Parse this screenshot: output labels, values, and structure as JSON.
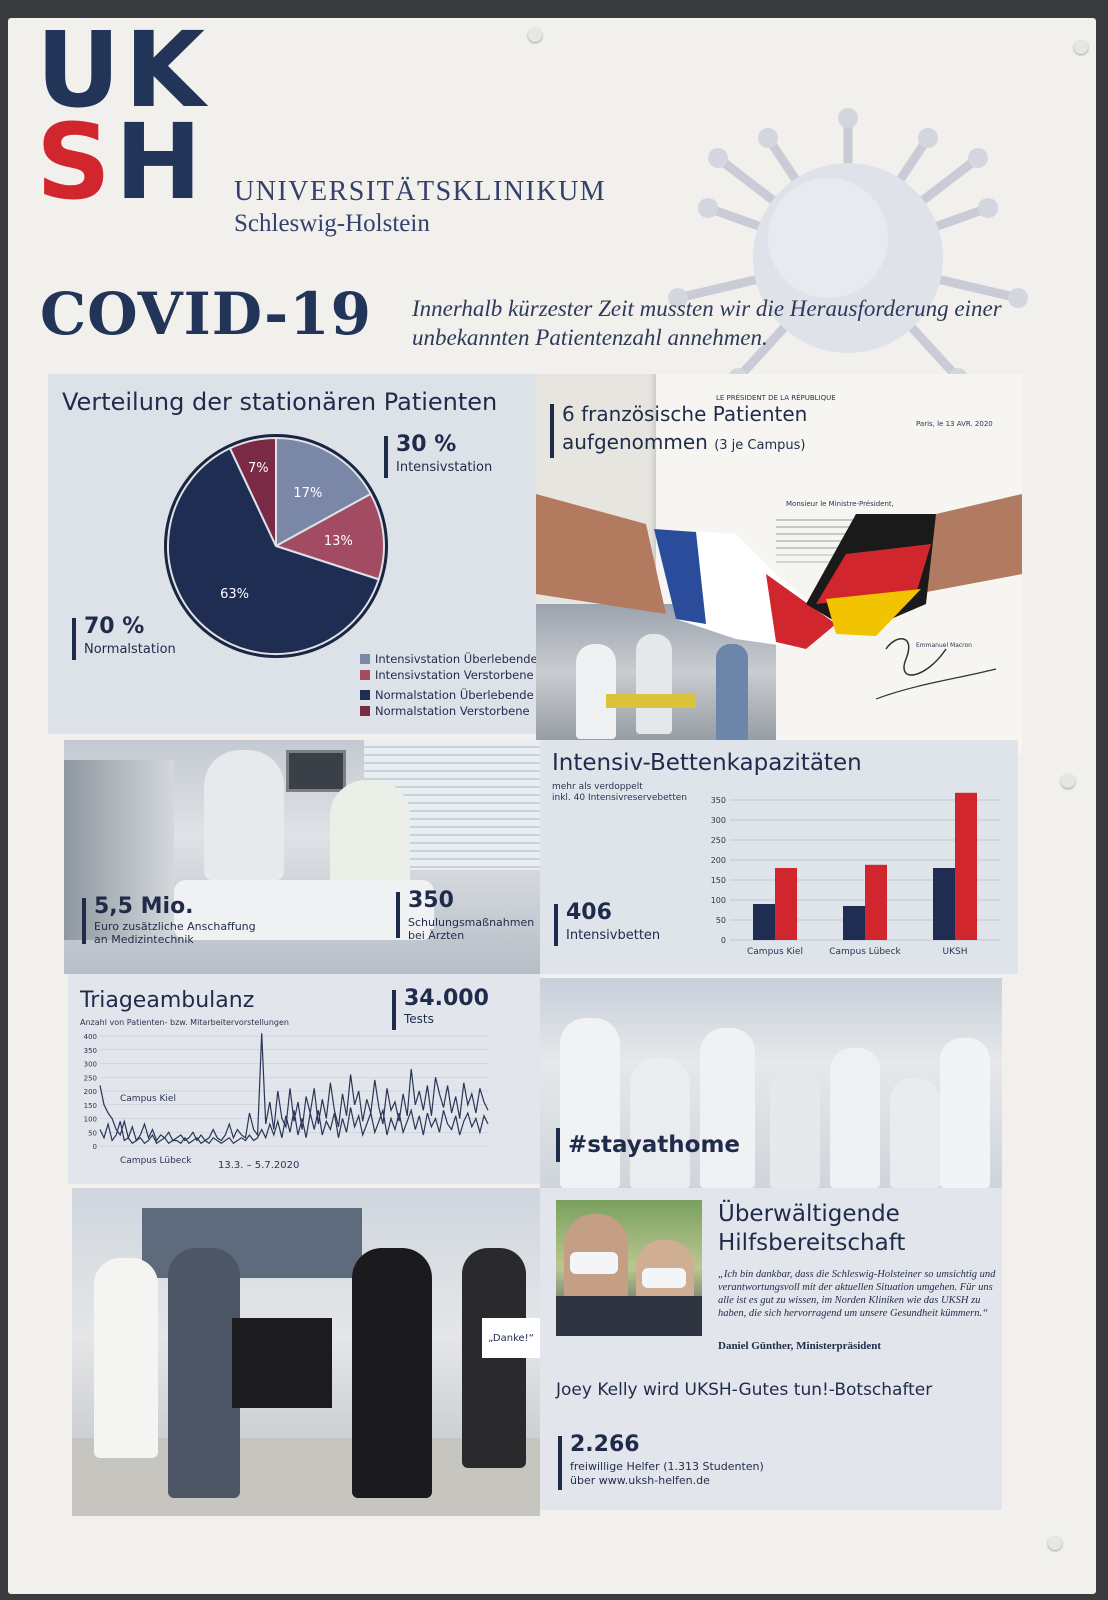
{
  "header": {
    "logo_row1": "UK",
    "logo_row2_a": "S",
    "logo_row2_b": "H",
    "brand_line1": "UNIVERSITÄTSKLINIKUM",
    "brand_line2": "Schleswig-Holstein",
    "title": "COVID-19",
    "tagline": "Innerhalb kürzester Zeit mussten wir die Herausforderung einer unbekannten Patientenzahl annehmen."
  },
  "patients": {
    "title": "Verteilung der stationären Patienten",
    "stat_intensiv_num": "30 %",
    "stat_intensiv_lbl": "Intensivstation",
    "stat_normal_num": "70 %",
    "stat_normal_lbl": "Normalstation",
    "legend": [
      {
        "label": "Intensivstation Überlebende",
        "color": "#7a87a6"
      },
      {
        "label": "Intensivstation Verstorbene",
        "color": "#a34b63"
      },
      {
        "label": "Normalstation Überlebende",
        "color": "#1f2d52"
      },
      {
        "label": "Normalstation Verstorbene",
        "color": "#7a2a44"
      }
    ]
  },
  "french": {
    "title_line1": "6 französische Patienten",
    "title_line2": "aufgenommen",
    "title_suffix": "(3 je Campus)",
    "letter_head": "LE PRÉSIDENT DE LA RÉPUBLIQUE",
    "letter_date": "Paris, le 13 AVR. 2020",
    "letter_salutation": "Monsieur le Ministre-Président,",
    "letter_signature": "Emmanuel Macron"
  },
  "icu_photo": {
    "stat1_num": "5,5 Mio.",
    "stat1_lbl1": "Euro zusätzliche Anschaffung",
    "stat1_lbl2": "an Medizintechnik",
    "stat2_num": "350",
    "stat2_lbl1": "Schulungsmaßnahmen",
    "stat2_lbl2": "bei Ärzten"
  },
  "beds": {
    "title": "Intensiv-Bettenkapazitäten",
    "sub1": "mehr als verdoppelt",
    "sub2": "inkl. 40 Intensivreservebetten",
    "stat_num": "406",
    "stat_lbl": "Intensivbetten"
  },
  "triage": {
    "title": "Triageambulanz",
    "sub": "Anzahl von Patienten- bzw. Mitarbeitervorstellungen",
    "stat_num": "34.000",
    "stat_lbl": "Tests",
    "label_kiel": "Campus Kiel",
    "label_luebeck": "Campus Lübeck",
    "date_range": "13.3. – 5.7.2020"
  },
  "stayathome": {
    "tag": "#stayathome"
  },
  "help": {
    "title_line1": "Überwältigende",
    "title_line2": "Hilfsbereitschaft",
    "quote": "„Ich bin dankbar, dass die Schleswig-Holsteiner so umsichtig und verantwortungsvoll mit der aktuellen Situation umgehen. Für uns alle ist es gut zu wissen, im Norden Kliniken wie das UKSH zu haben, die sich hervorragend um unsere Gesundheit kümmern.“",
    "author": "Daniel Günther, Ministerpräsident",
    "ambassador": "Joey Kelly wird UKSH-Gutes tun!-Botschafter",
    "stat_num": "2.266",
    "stat_lbl1": "freiwillige Helfer (1.313 Studenten)",
    "stat_lbl2": "über www.uksh-helfen.de"
  },
  "group_photo": {
    "sign_danke": "„Danke!“"
  },
  "chart_data": [
    {
      "type": "pie",
      "title": "Verteilung der stationären Patienten",
      "labels": [
        "Intensivstation Überlebende",
        "Intensivstation Verstorbene",
        "Normalstation Überlebende",
        "Normalstation Verstorbene"
      ],
      "values": [
        17,
        13,
        63,
        7
      ],
      "value_labels": [
        "17%",
        "13%",
        "63%",
        "7%"
      ],
      "colors": [
        "#7a87a6",
        "#a34b63",
        "#1f2d52",
        "#7a2a44"
      ]
    },
    {
      "type": "bar",
      "title": "Intensiv-Bettenkapazitäten",
      "categories": [
        "Campus Kiel",
        "Campus Lübeck",
        "UKSH"
      ],
      "series": [
        {
          "values": [
            90,
            85,
            180
          ],
          "color": "#1f2d52"
        },
        {
          "values": [
            180,
            188,
            368
          ],
          "color": "#d2262f"
        }
      ],
      "ylim": [
        0,
        350
      ],
      "yticks": [
        "0",
        "50",
        "100",
        "150",
        "200",
        "250",
        "300",
        "350"
      ]
    },
    {
      "type": "line",
      "title": "Triageambulanz",
      "ylim": [
        0,
        400
      ],
      "yticks": [
        "0",
        "50",
        "100",
        "150",
        "200",
        "250",
        "300",
        "350",
        "400"
      ],
      "series": [
        {
          "name": "Campus Kiel",
          "values": [
            220,
            150,
            120,
            100,
            60,
            40,
            90,
            30,
            70,
            20,
            40,
            80,
            30,
            60,
            20,
            40,
            30,
            50,
            20,
            30,
            40,
            20,
            30,
            50,
            20,
            40,
            20,
            30,
            60,
            30,
            20,
            40,
            80,
            30,
            60,
            40,
            30,
            120,
            60,
            40,
            410,
            80,
            160,
            60,
            200,
            100,
            70,
            210,
            90,
            160,
            60,
            180,
            120,
            210,
            80,
            170,
            100,
            230,
            130,
            70,
            190,
            110,
            260,
            150,
            200,
            90,
            170,
            120,
            240,
            140,
            80,
            210,
            130,
            160,
            90,
            190,
            110,
            280,
            150,
            200,
            130,
            220,
            110,
            250,
            190,
            140,
            220,
            120,
            180,
            100,
            230,
            150,
            190,
            120,
            210,
            160,
            130
          ]
        },
        {
          "name": "Campus Lübeck",
          "values": [
            60,
            30,
            80,
            20,
            40,
            90,
            20,
            30,
            10,
            20,
            30,
            10,
            20,
            40,
            10,
            20,
            30,
            10,
            20,
            20,
            10,
            30,
            10,
            20,
            30,
            10,
            20,
            10,
            30,
            20,
            10,
            20,
            30,
            10,
            20,
            30,
            20,
            40,
            20,
            30,
            60,
            30,
            80,
            40,
            90,
            30,
            110,
            50,
            130,
            40,
            100,
            30,
            120,
            60,
            130,
            40,
            90,
            60,
            120,
            30,
            100,
            50,
            140,
            70,
            110,
            40,
            80,
            120,
            50,
            90,
            130,
            40,
            100,
            60,
            120,
            50,
            90,
            130,
            60,
            110,
            40,
            120,
            70,
            100,
            50,
            130,
            80,
            60,
            110,
            40,
            90,
            120,
            70,
            100,
            50,
            110,
            80
          ]
        }
      ]
    }
  ]
}
